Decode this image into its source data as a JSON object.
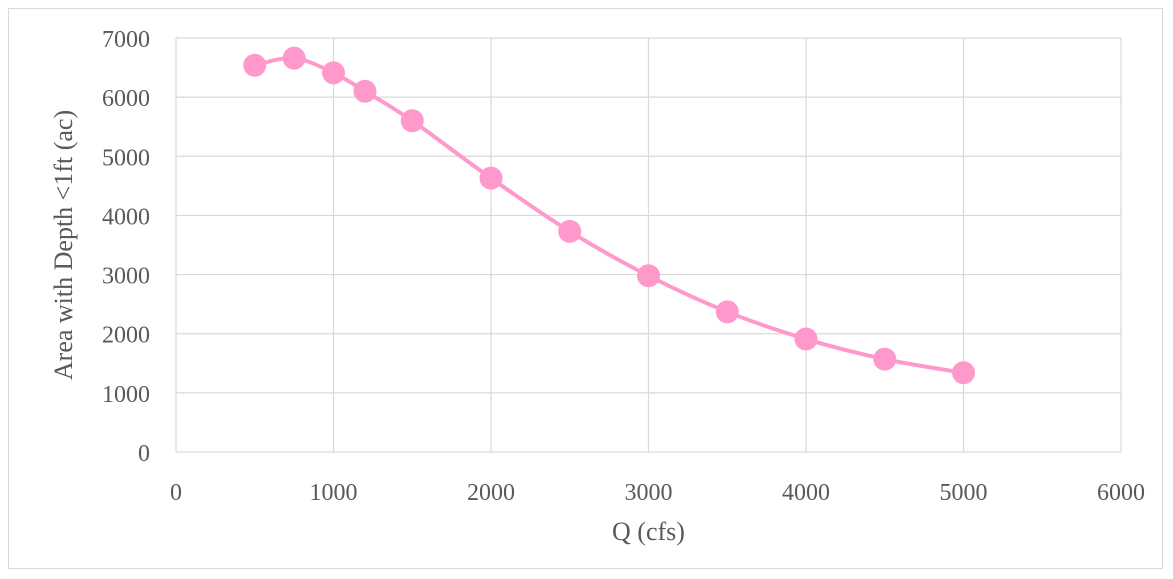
{
  "chart_data": {
    "type": "scatter",
    "xlabel": "Q (cfs)",
    "ylabel": "Area with Depth <1ft (ac)",
    "xlim": [
      0,
      6000
    ],
    "ylim": [
      0,
      7000
    ],
    "x_ticks": [
      0,
      1000,
      2000,
      3000,
      4000,
      5000,
      6000
    ],
    "y_ticks": [
      0,
      1000,
      2000,
      3000,
      4000,
      5000,
      6000,
      7000
    ],
    "grid": true,
    "legend": "none",
    "smoothed_line": true,
    "series": [
      {
        "color": "#ff99cc",
        "points": [
          {
            "x": 500,
            "y": 6540
          },
          {
            "x": 750,
            "y": 6660
          },
          {
            "x": 1000,
            "y": 6410
          },
          {
            "x": 1200,
            "y": 6100
          },
          {
            "x": 1500,
            "y": 5600
          },
          {
            "x": 2000,
            "y": 4630
          },
          {
            "x": 2500,
            "y": 3730
          },
          {
            "x": 3000,
            "y": 2980
          },
          {
            "x": 3500,
            "y": 2370
          },
          {
            "x": 4000,
            "y": 1910
          },
          {
            "x": 4500,
            "y": 1570
          },
          {
            "x": 5000,
            "y": 1340
          }
        ]
      }
    ]
  }
}
